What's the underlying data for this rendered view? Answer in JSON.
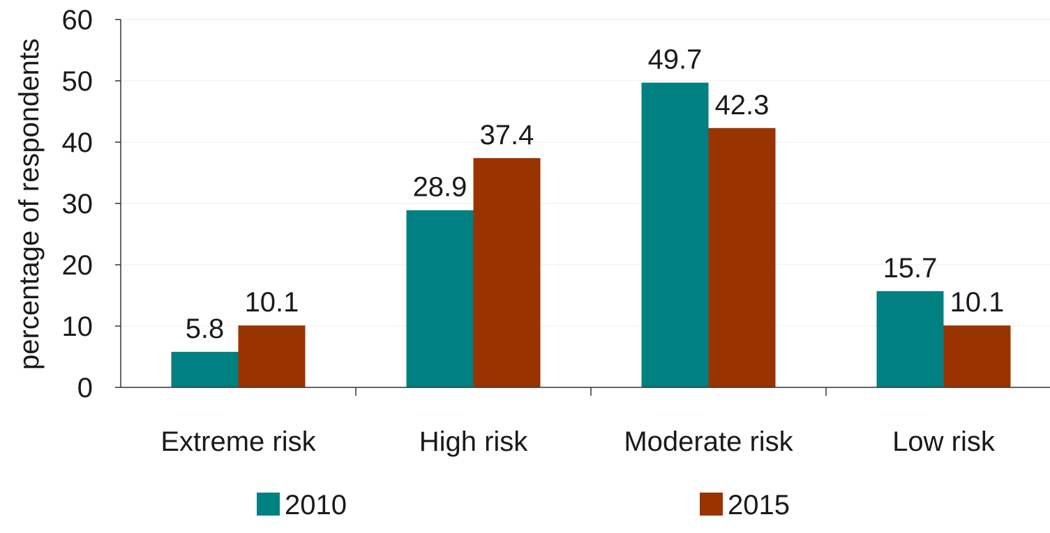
{
  "chart_data": {
    "type": "bar",
    "categories": [
      "Extreme risk",
      "High risk",
      "Moderate risk",
      "Low risk"
    ],
    "series": [
      {
        "name": "2010",
        "values": [
          5.8,
          28.9,
          49.7,
          15.7
        ],
        "labels": [
          "5.8",
          "28.9",
          "49.7",
          "15.7"
        ],
        "color": "#008080"
      },
      {
        "name": "2015",
        "values": [
          10.1,
          37.4,
          42.3,
          10.1
        ],
        "labels": [
          "10.1",
          "37.4",
          "42.3",
          "10.1"
        ],
        "color": "#993300"
      }
    ],
    "ylabel": "percentage of respondents",
    "xlabel": "",
    "title": "",
    "ylim": [
      0,
      60
    ],
    "yticks": [
      "0",
      "10",
      "20",
      "30",
      "40",
      "50",
      "60"
    ],
    "grid": true,
    "legend": "bottom"
  }
}
